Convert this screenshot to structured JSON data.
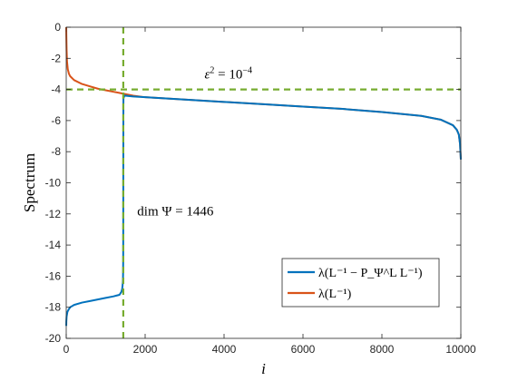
{
  "chart_data": {
    "type": "line",
    "xlabel": "i",
    "ylabel": "Spectrum",
    "xlim": [
      0,
      10000
    ],
    "ylim": [
      -20,
      0
    ],
    "xticks": [
      0,
      2000,
      4000,
      6000,
      8000,
      10000
    ],
    "yticks": [
      0,
      -2,
      -4,
      -6,
      -8,
      -10,
      -12,
      -14,
      -16,
      -18,
      -20
    ],
    "grid": false,
    "legend_position": "bottom-right",
    "series": [
      {
        "name": "λ(L⁻¹ − P_Ψ^L L⁻¹)",
        "color": "#0072BD",
        "x": [
          1,
          3,
          10,
          30,
          60,
          100,
          200,
          400,
          600,
          800,
          1000,
          1200,
          1350,
          1400,
          1420,
          1435,
          1440,
          1444,
          1446,
          1447,
          1448,
          1450,
          1460,
          1480,
          1500,
          1700,
          2000,
          3000,
          4000,
          5000,
          6000,
          7000,
          8000,
          9000,
          9500,
          9800,
          9900,
          9950,
          9980,
          10000
        ],
        "values": [
          -19.2,
          -18.9,
          -18.6,
          -18.3,
          -18.15,
          -18.0,
          -17.85,
          -17.7,
          -17.6,
          -17.5,
          -17.4,
          -17.3,
          -17.2,
          -17.0,
          -16.8,
          -16.4,
          -16.0,
          -15.0,
          -12.0,
          -9.0,
          -6.0,
          -4.6,
          -4.5,
          -4.4,
          -4.4,
          -4.45,
          -4.5,
          -4.65,
          -4.8,
          -4.95,
          -5.1,
          -5.25,
          -5.45,
          -5.7,
          -5.95,
          -6.3,
          -6.6,
          -6.9,
          -7.5,
          -8.5
        ]
      },
      {
        "name": "λ(L⁻¹)",
        "color": "#D95319",
        "x": [
          1,
          3,
          10,
          20,
          40,
          70,
          100,
          200,
          400,
          600,
          800,
          1000,
          1200,
          1400,
          1500,
          1700,
          2000,
          3000,
          4000,
          5000,
          6000,
          7000,
          8000,
          9000,
          9500,
          9800,
          9900,
          9950,
          9980,
          10000
        ],
        "values": [
          0,
          -0.5,
          -1.5,
          -2.2,
          -2.7,
          -3.0,
          -3.15,
          -3.4,
          -3.65,
          -3.8,
          -3.95,
          -4.05,
          -4.15,
          -4.25,
          -4.3,
          -4.4,
          -4.5,
          -4.65,
          -4.8,
          -4.95,
          -5.1,
          -5.25,
          -5.45,
          -5.7,
          -5.95,
          -6.3,
          -6.6,
          -6.9,
          -7.5,
          -8.5
        ]
      }
    ],
    "reference_lines": [
      {
        "orientation": "horizontal",
        "value": -4,
        "color": "#77AC30",
        "style": "dashed"
      },
      {
        "orientation": "vertical",
        "value": 1446,
        "color": "#77AC30",
        "style": "dashed"
      }
    ],
    "annotations": [
      {
        "text_base": "ε",
        "text_sup": "2",
        "text_mid": " = 10",
        "text_sup2": "−4",
        "x": 5000,
        "y": -3
      },
      {
        "text": "dim Ψ = 1446",
        "x": 1800,
        "y": -11.8
      }
    ],
    "legend": [
      {
        "label": "λ(L⁻¹ − P_Ψ^L L⁻¹)",
        "color": "#0072BD"
      },
      {
        "label": "λ(L⁻¹)",
        "color": "#D95319"
      }
    ]
  }
}
